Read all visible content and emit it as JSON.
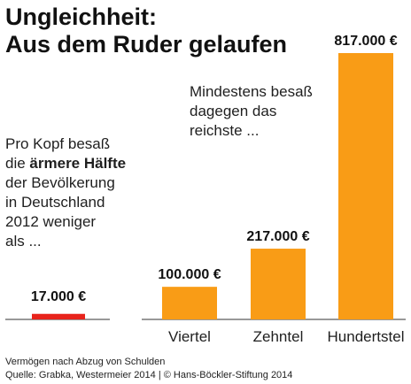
{
  "title_lines": [
    "Ungleichheit:",
    "Aus dem Ruder gelaufen"
  ],
  "left_text": {
    "line1": "Pro Kopf besaß",
    "line2_plain": "die ",
    "line2_bold": "ärmere Hälfte",
    "line3": "der Bevölkerung",
    "line4": "in Deutschland",
    "line5": "2012 weniger",
    "line6": "als ..."
  },
  "right_text": [
    "Mindestens besaß",
    "dagegen das",
    "reichste ..."
  ],
  "colors": {
    "baseline_bar": "#e8231b",
    "bars": "#f99c16",
    "axis": "#333333",
    "text": "#1a1a1a"
  },
  "chart_data": {
    "type": "bar",
    "baseline": {
      "value": 17000,
      "value_label": "17.000 €"
    },
    "categories": [
      "Viertel",
      "Zehntel",
      "Hundertstel"
    ],
    "values": [
      100000,
      217000,
      817000
    ],
    "value_labels": [
      "100.000 €",
      "217.000 €",
      "817.000 €"
    ],
    "ylim": [
      0,
      817000
    ]
  },
  "footer": {
    "line1": "Vermögen nach Abzug von Schulden",
    "line2": "Quelle: Grabka, Westermeier 2014 | © Hans-Böckler-Stiftung 2014"
  }
}
